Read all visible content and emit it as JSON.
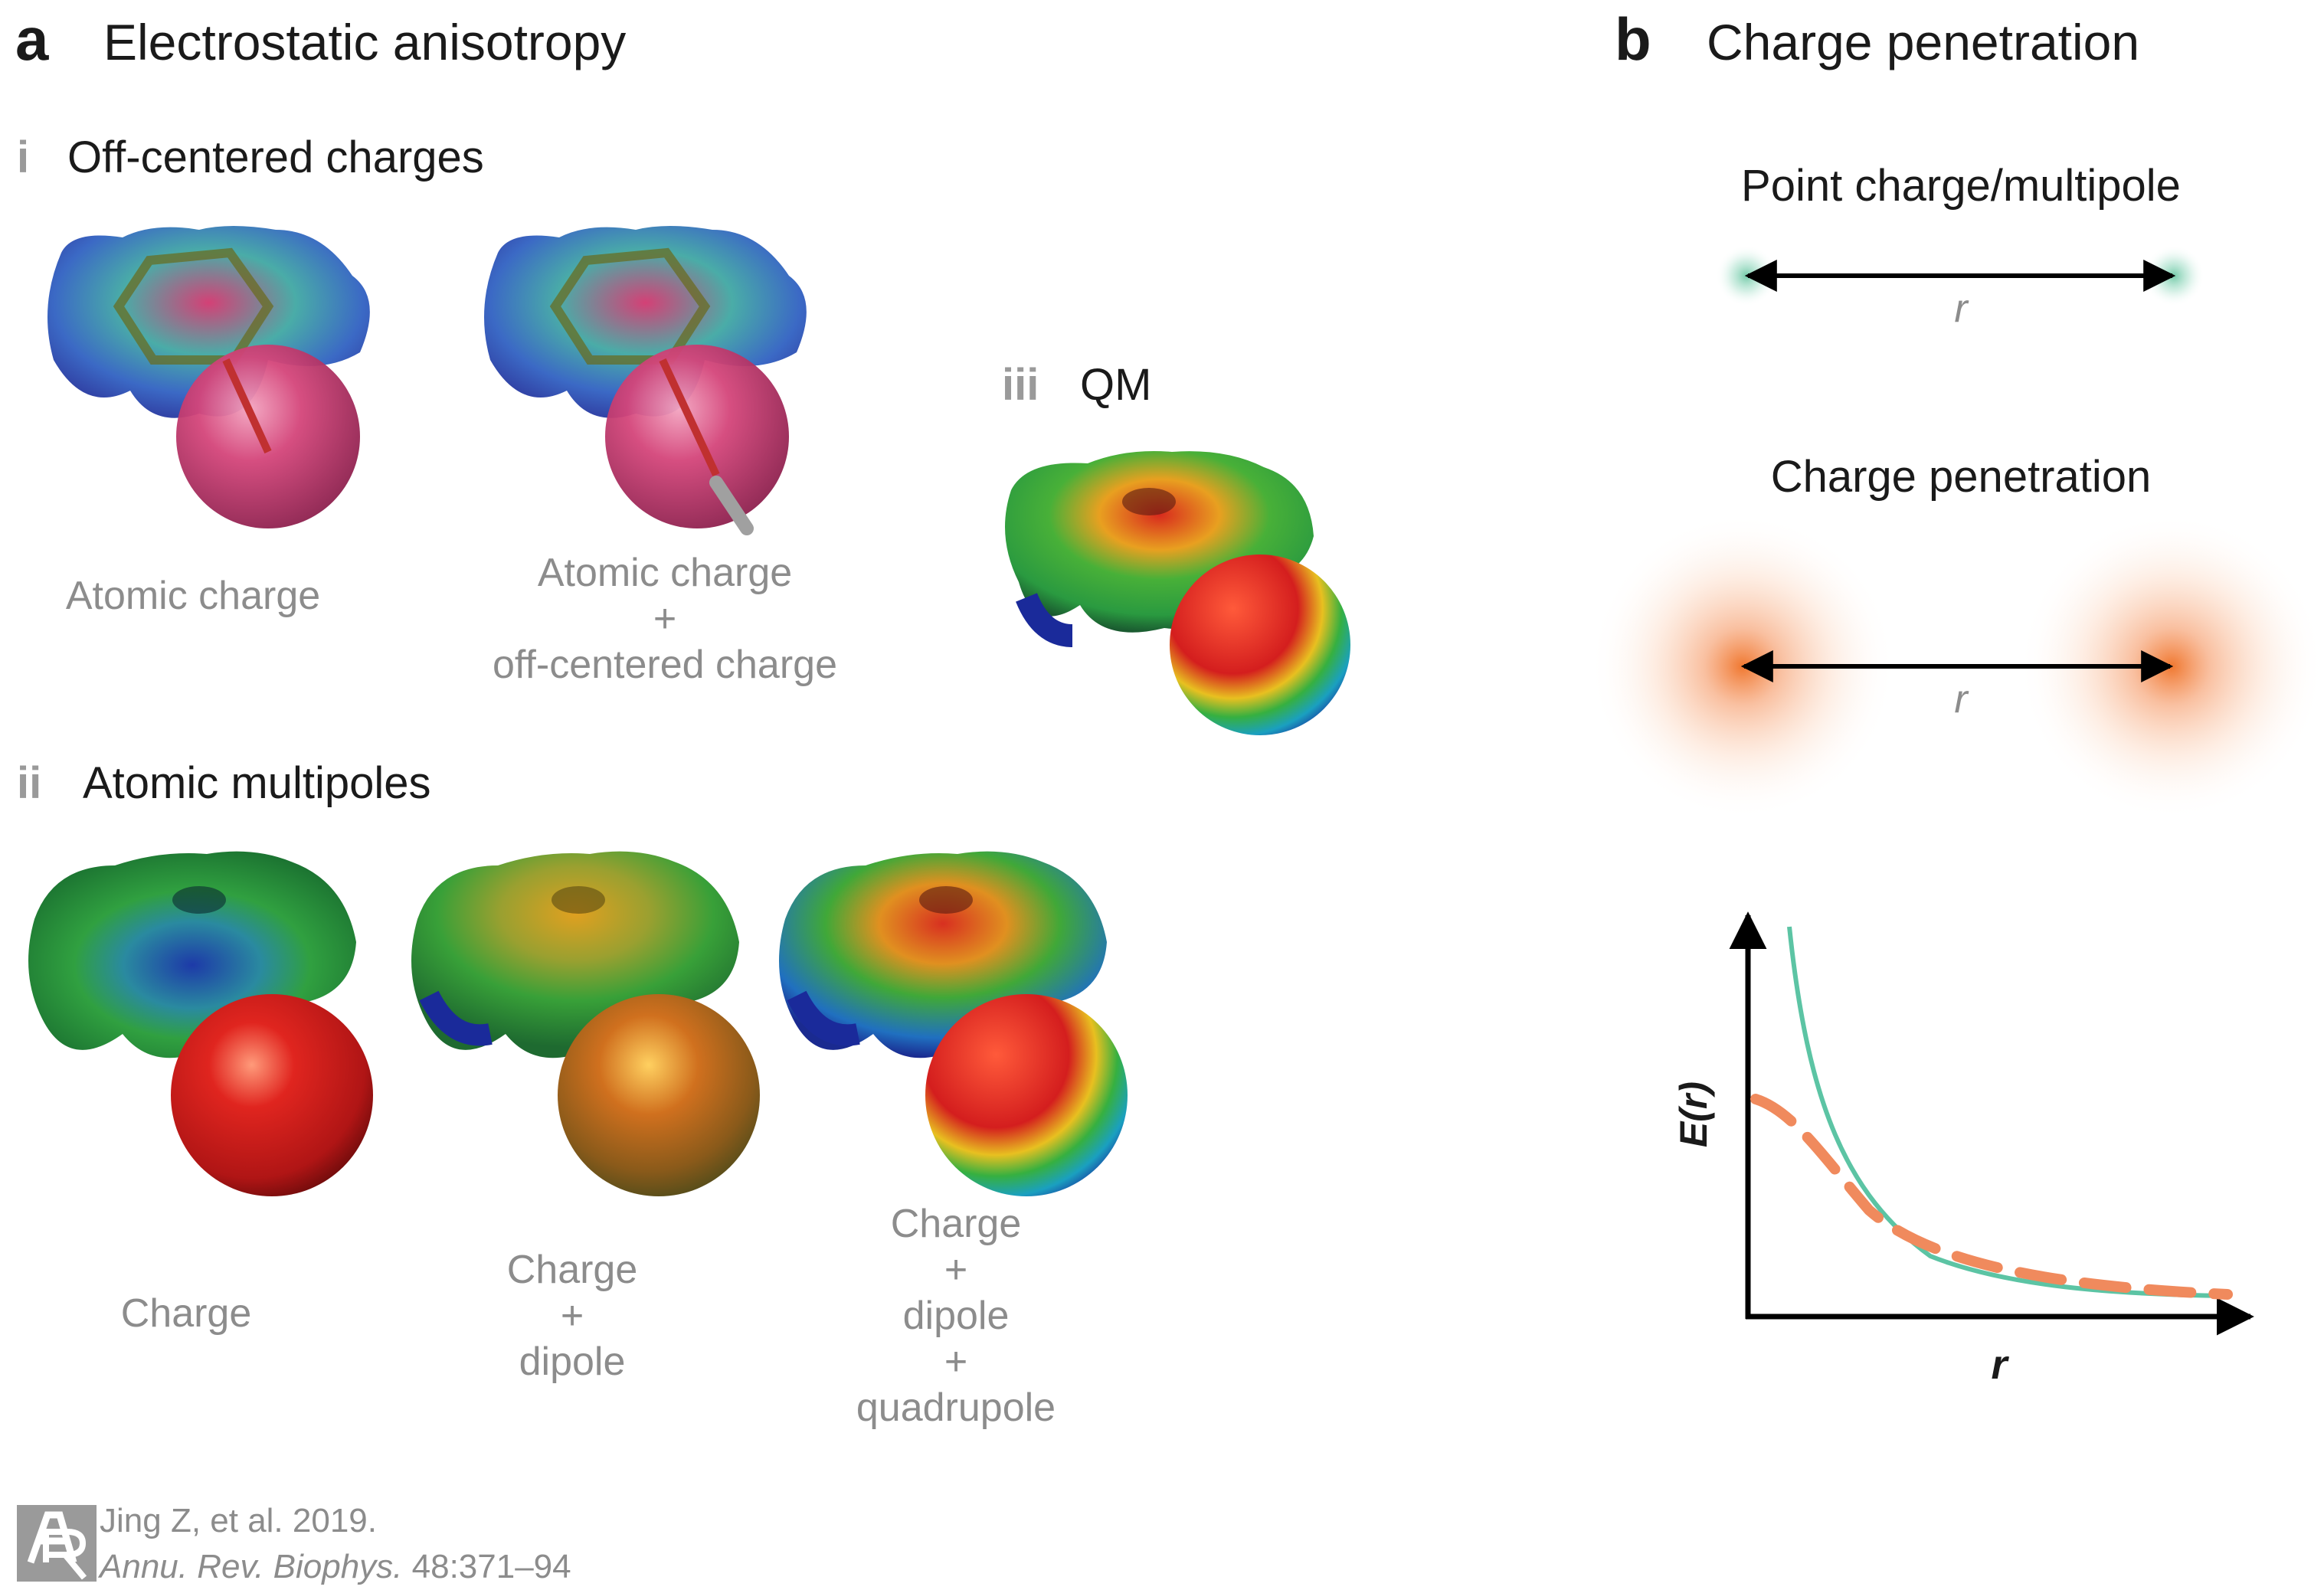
{
  "panel_a": {
    "letter": "a",
    "title": "Electrostatic anisotropy",
    "section_i": {
      "numeral": "i",
      "title": "Off-centered charges",
      "caption_1": "Atomic charge",
      "caption_2_line1": "Atomic charge",
      "caption_2_line2": "+",
      "caption_2_line3": "off-centered charge"
    },
    "section_ii": {
      "numeral": "ii",
      "title": "Atomic multipoles",
      "caption_1": "Charge",
      "caption_2_line1": "Charge",
      "caption_2_line2": "+",
      "caption_2_line3": "dipole",
      "caption_3_line1": "Charge",
      "caption_3_line2": "+",
      "caption_3_line3": "dipole",
      "caption_3_line4": "+",
      "caption_3_line5": "quadrupole"
    },
    "section_iii": {
      "numeral": "iii",
      "title": "QM"
    }
  },
  "panel_b": {
    "letter": "b",
    "title": "Charge penetration",
    "point_label": "Point charge/multipole",
    "point_distance": "r",
    "cp_label": "Charge penetration",
    "cp_distance": "r",
    "plot": {
      "ylabel": "E(r)",
      "xlabel": "r"
    }
  },
  "citation": {
    "line1": "Jing Z, et al. 2019.",
    "line2_journal": "Annu. Rev. Biophys.",
    "line2_rest": " 48:371–94"
  },
  "colors": {
    "multipole_curve": "#5cc4a4",
    "penetration_curve": "#f08a5d",
    "charge_cloud": "#f07830",
    "point_glow": "#8fd3b8",
    "molecule_red": "#d2202a",
    "molecule_green": "#3aaa35",
    "molecule_blue": "#1e3ca8",
    "molecule_magenta": "#c8387a"
  }
}
